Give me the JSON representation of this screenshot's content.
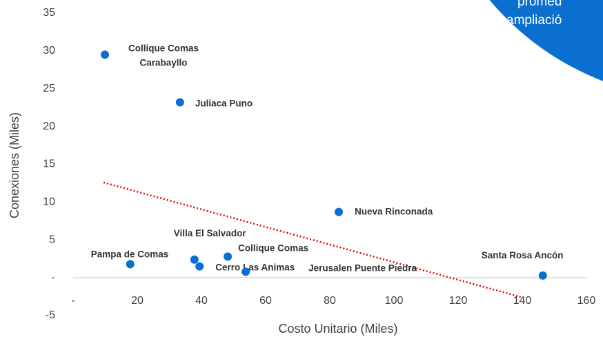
{
  "chart_data": {
    "type": "scatter",
    "x_label": "Costo Unitario (Miles)",
    "y_label": "Conexiones (Miles)",
    "xlim": [
      0,
      160
    ],
    "xticks": [
      {
        "value": 0,
        "label": "-"
      },
      20,
      40,
      60,
      80,
      100,
      120,
      140,
      160
    ],
    "ylim": [
      -5,
      35
    ],
    "yticks": [
      -5,
      {
        "value": 0,
        "label": "-"
      },
      5,
      10,
      15,
      20,
      25,
      30,
      35
    ],
    "grid": false,
    "series": [
      {
        "color": "#0b6fcf",
        "labels": [
          "Collique Comas\nCarabayllo",
          "Juliaca Puno",
          "Nueva Rinconada",
          "Santa Rosa Ancón",
          "Pampa de Comas",
          "Villa El Salvador",
          "Cerro Las Animas",
          "Collique Comas",
          "Jerusalen Puente Piedra"
        ],
        "x": [
          9.9,
          33.3,
          82.8,
          146.4,
          17.8,
          37.8,
          39.4,
          48.2,
          53.8
        ],
        "values": [
          29.5,
          23.2,
          8.7,
          0.3,
          1.8,
          2.4,
          1.5,
          2.8,
          0.8
        ]
      }
    ],
    "trendline": {
      "color": "#e00000",
      "x": [
        9.5,
        140
      ],
      "values": [
        12.6,
        -2.6
      ]
    },
    "annotations": [
      "promed",
      "ampliació"
    ]
  }
}
